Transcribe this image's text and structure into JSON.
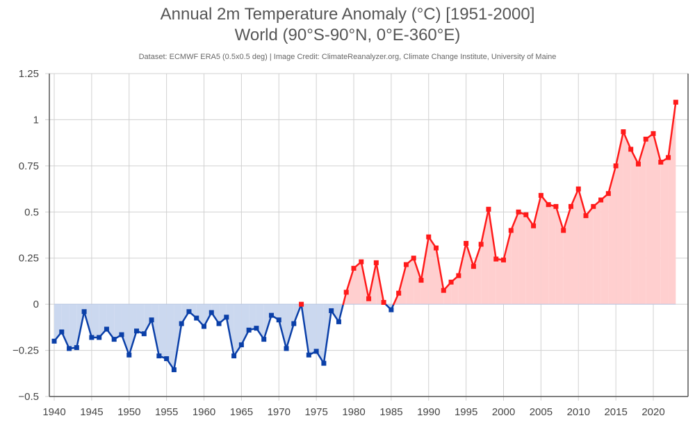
{
  "chart_data": {
    "type": "area",
    "title": "Annual 2m Temperature Anomaly (°C) [1951-2000]",
    "subtitle": "World (90°S-90°N, 0°E-360°E)",
    "credit": "Dataset: ECMWF ERA5 (0.5x0.5 deg) | Image Credit: ClimateReanalyzer.org, Climate Change Institute, University of Maine",
    "xlabel": "",
    "ylabel": "",
    "xlim": [
      1939,
      2025
    ],
    "ylim": [
      -0.5,
      1.25
    ],
    "grid": true,
    "legend": "none",
    "positive_color": "#ff1a1a",
    "negative_color": "#0a3fa8",
    "positive_fill": "#ffcfcf",
    "negative_fill": "#cbd8ef",
    "x_ticks": [
      "1940",
      "1945",
      "1950",
      "1955",
      "1960",
      "1965",
      "1970",
      "1975",
      "1980",
      "1985",
      "1990",
      "1995",
      "2000",
      "2005",
      "2010",
      "2015",
      "2020"
    ],
    "y_ticks": [
      "1.25",
      "1",
      "0.75",
      "0.5",
      "0.25",
      "0",
      "−0.25",
      "−0.5"
    ],
    "y_tick_values": [
      1.25,
      1,
      0.75,
      0.5,
      0.25,
      0,
      -0.25,
      -0.5
    ],
    "x": [
      1940,
      1941,
      1942,
      1943,
      1944,
      1945,
      1946,
      1947,
      1948,
      1949,
      1950,
      1951,
      1952,
      1953,
      1954,
      1955,
      1956,
      1957,
      1958,
      1959,
      1960,
      1961,
      1962,
      1963,
      1964,
      1965,
      1966,
      1967,
      1968,
      1969,
      1970,
      1971,
      1972,
      1973,
      1974,
      1975,
      1976,
      1977,
      1978,
      1979,
      1980,
      1981,
      1982,
      1983,
      1984,
      1985,
      1986,
      1987,
      1988,
      1989,
      1990,
      1991,
      1992,
      1993,
      1994,
      1995,
      1996,
      1997,
      1998,
      1999,
      2000,
      2001,
      2002,
      2003,
      2004,
      2005,
      2006,
      2007,
      2008,
      2009,
      2010,
      2011,
      2012,
      2013,
      2014,
      2015,
      2016,
      2017,
      2018,
      2019,
      2020,
      2021,
      2022,
      2023
    ],
    "series": [
      {
        "name": "Annual 2m Temperature Anomaly",
        "values": [
          -0.2,
          -0.15,
          -0.24,
          -0.235,
          -0.04,
          -0.18,
          -0.18,
          -0.135,
          -0.19,
          -0.165,
          -0.275,
          -0.145,
          -0.16,
          -0.085,
          -0.28,
          -0.295,
          -0.355,
          -0.105,
          -0.04,
          -0.075,
          -0.12,
          -0.045,
          -0.105,
          -0.07,
          -0.28,
          -0.22,
          -0.14,
          -0.13,
          -0.19,
          -0.06,
          -0.085,
          -0.24,
          -0.105,
          0.0,
          -0.275,
          -0.255,
          -0.32,
          -0.035,
          -0.095,
          0.065,
          0.195,
          0.23,
          0.03,
          0.225,
          0.01,
          -0.03,
          0.06,
          0.215,
          0.25,
          0.13,
          0.365,
          0.305,
          0.075,
          0.12,
          0.155,
          0.33,
          0.205,
          0.325,
          0.515,
          0.245,
          0.24,
          0.4,
          0.5,
          0.485,
          0.425,
          0.59,
          0.54,
          0.53,
          0.4,
          0.53,
          0.625,
          0.48,
          0.53,
          0.565,
          0.6,
          0.75,
          0.935,
          0.84,
          0.76,
          0.895,
          0.925,
          0.77,
          0.795,
          1.095
        ]
      }
    ]
  }
}
